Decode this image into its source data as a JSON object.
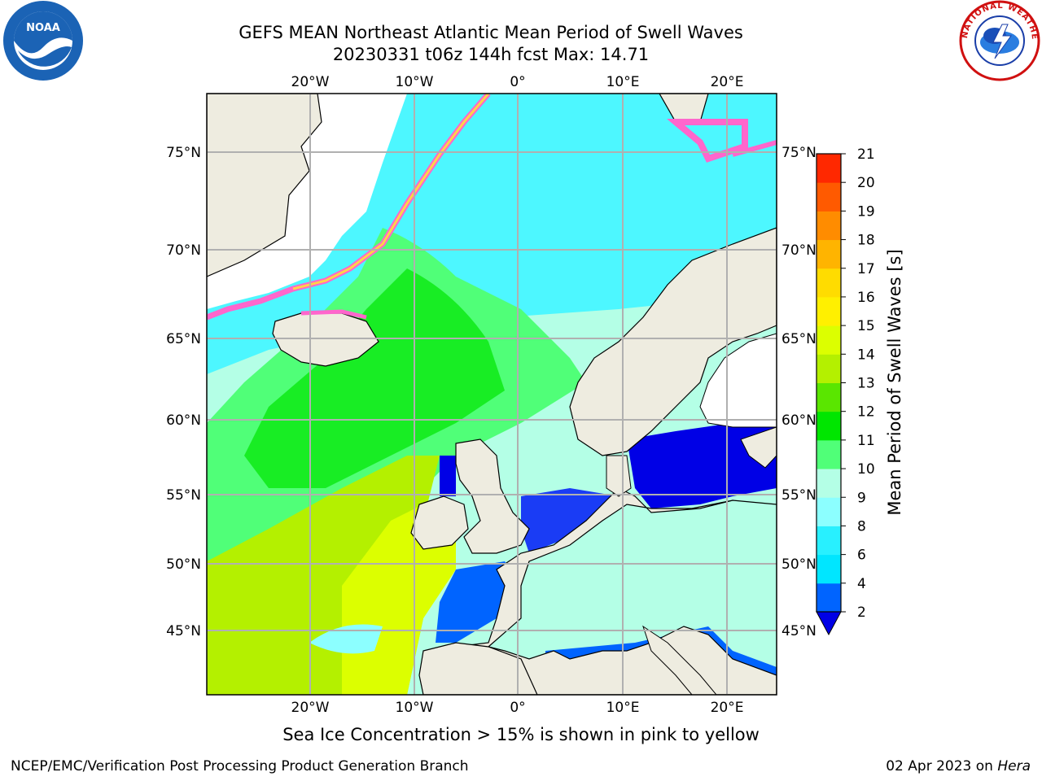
{
  "header": {
    "title_line1": "GEFS MEAN Northeast Atlantic Mean Period of Swell Waves",
    "title_line2": "20230331 t06z 144h fcst   Max: 14.71"
  },
  "map": {
    "top_lon_labels": [
      "20°W",
      "10°W",
      "0°",
      "10°E",
      "20°E"
    ],
    "bottom_lon_labels": [
      "20°W",
      "10°W",
      "0°",
      "10°E",
      "20°E"
    ],
    "left_lat_labels": [
      "75°N",
      "70°N",
      "65°N",
      "60°N",
      "55°N",
      "50°N",
      "45°N"
    ],
    "right_lat_labels": [
      "75°N",
      "70°N",
      "65°N",
      "60°N",
      "55°N",
      "50°N",
      "45°N"
    ],
    "lon_range": [
      -30,
      25
    ],
    "lat_range": [
      41,
      78
    ]
  },
  "colorbar": {
    "label": "Mean Period of Swell Waves [s]",
    "ticks": [
      "2",
      "4",
      "6",
      "8",
      "9",
      "10",
      "11",
      "12",
      "13",
      "14",
      "15",
      "16",
      "17",
      "18",
      "19",
      "20",
      "21"
    ],
    "colors": [
      "#0064ff",
      "#00e6ff",
      "#28f0ff",
      "#8cffff",
      "#b4ffe6",
      "#50ff78",
      "#00e600",
      "#5ae600",
      "#b4f000",
      "#dcff00",
      "#fff000",
      "#ffdc00",
      "#ffb400",
      "#ff8c00",
      "#ff5a00",
      "#ff2800",
      "#ff0000"
    ],
    "under_color": "#0000e6"
  },
  "footer": {
    "note": "Sea Ice Concentration > 15% is shown in pink to yellow",
    "left": "NCEP/EMC/Verification Post Processing Product Generation Branch",
    "right_date": "02 Apr 2023 on",
    "right_host": "Hera"
  },
  "logos": {
    "left": "NOAA",
    "right_text": "NATIONAL WEATHER SERVICE"
  }
}
